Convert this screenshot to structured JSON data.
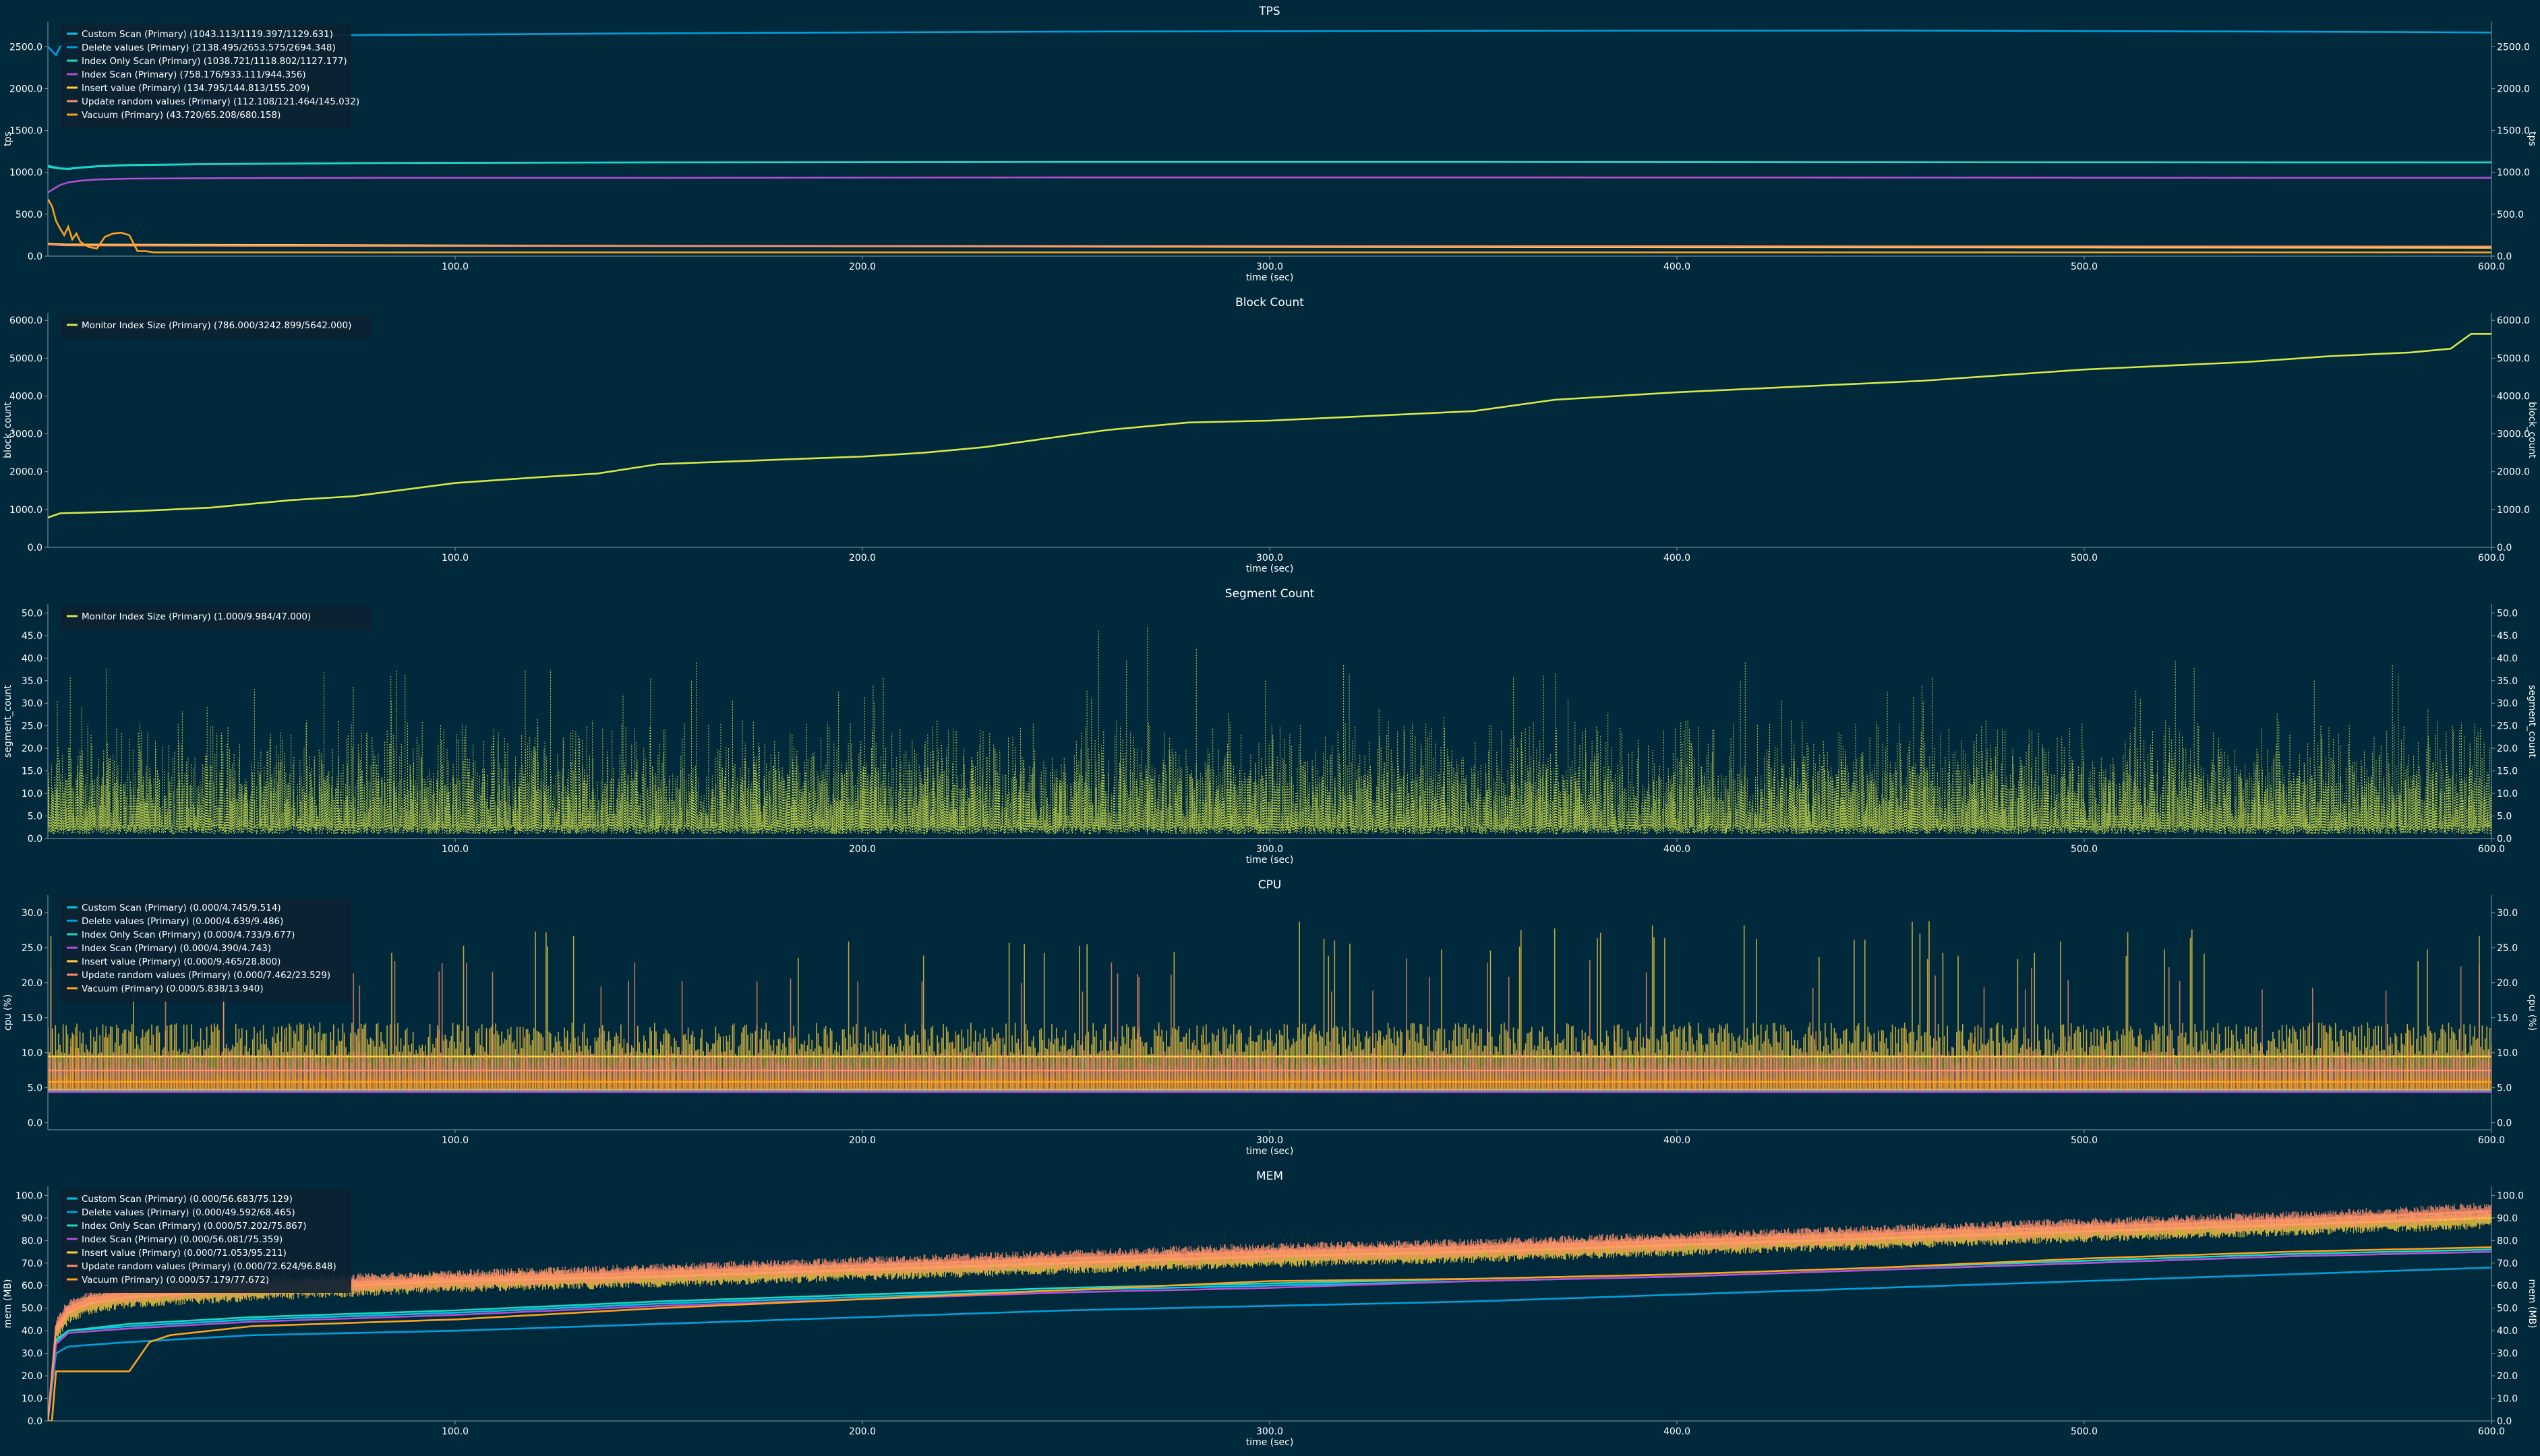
{
  "colors": {
    "background": "#00293c",
    "legend_bg": "#0b2232",
    "text": "#ffffff",
    "axis": "#8a9aa4"
  },
  "chart_data": [
    {
      "type": "line",
      "title": "TPS",
      "xlabel": "time (sec)",
      "ylabel": "tps",
      "xlim": [
        0,
        600
      ],
      "ylim": [
        0,
        2800
      ],
      "xticks": [
        100,
        200,
        300,
        400,
        500,
        600
      ],
      "yticks": [
        0,
        500,
        1000,
        1500,
        2000,
        2500
      ],
      "legend_position": "top-left",
      "series": [
        {
          "name": "Custom Scan (Primary) (1043.113/1119.397/1129.631)",
          "color": "#00c5e8",
          "x": [
            0,
            1,
            2,
            3,
            5,
            8,
            12,
            20,
            40,
            80,
            150,
            250,
            350,
            450,
            550,
            600
          ],
          "y": [
            1080,
            1070,
            1060,
            1050,
            1045,
            1060,
            1075,
            1090,
            1100,
            1112,
            1120,
            1125,
            1125,
            1122,
            1120,
            1120
          ]
        },
        {
          "name": "Delete values (Primary) (2138.495/2653.575/2694.348)",
          "color": "#00a0dc",
          "x": [
            0,
            1,
            2,
            3,
            5,
            8,
            12,
            20,
            40,
            80,
            150,
            250,
            350,
            450,
            550,
            600
          ],
          "y": [
            2500,
            2450,
            2400,
            2500,
            2540,
            2560,
            2580,
            2600,
            2620,
            2640,
            2660,
            2680,
            2690,
            2694,
            2680,
            2670
          ]
        },
        {
          "name": "Index Only Scan (Primary) (1038.721/1118.802/1127.177)",
          "color": "#1fd6c5",
          "x": [
            0,
            1,
            2,
            3,
            5,
            8,
            12,
            20,
            40,
            80,
            150,
            250,
            350,
            450,
            550,
            600
          ],
          "y": [
            1070,
            1060,
            1050,
            1045,
            1040,
            1055,
            1070,
            1085,
            1098,
            1110,
            1118,
            1124,
            1124,
            1121,
            1119,
            1118
          ]
        },
        {
          "name": "Index Scan (Primary) (758.176/933.111/944.356)",
          "color": "#b44fd0",
          "x": [
            0,
            1,
            2,
            3,
            5,
            8,
            12,
            20,
            40,
            80,
            150,
            250,
            350,
            450,
            550,
            600
          ],
          "y": [
            760,
            790,
            820,
            850,
            880,
            900,
            915,
            925,
            930,
            935,
            935,
            940,
            940,
            938,
            935,
            935
          ]
        },
        {
          "name": "Insert value (Primary) (134.795/144.813/155.209)",
          "color": "#ffd23c",
          "x": [
            0,
            2,
            4,
            10,
            30,
            60,
            100,
            150,
            200,
            250,
            300,
            350,
            400,
            450,
            500,
            550,
            600
          ],
          "y": [
            150,
            145,
            140,
            138,
            136,
            134,
            128,
            122,
            118,
            114,
            110,
            108,
            106,
            105,
            104,
            102,
            100
          ]
        },
        {
          "name": "Update random values (Primary) (112.108/121.464/145.032)",
          "color": "#ff8f6b",
          "x": [
            0,
            2,
            4,
            10,
            30,
            60,
            100,
            150,
            200,
            250,
            300,
            350,
            400,
            450,
            500,
            550,
            600
          ],
          "y": [
            140,
            135,
            130,
            128,
            126,
            124,
            122,
            121,
            120,
            120,
            119,
            118,
            118,
            117,
            116,
            115,
            114
          ]
        },
        {
          "name": "Vacuum (Primary) (43.720/65.208/680.158)",
          "color": "#ffa21f",
          "x": [
            0,
            1,
            2,
            3,
            4,
            5,
            6,
            7,
            8,
            10,
            12,
            14,
            16,
            18,
            20,
            22,
            24,
            26,
            30,
            40,
            60,
            80,
            100,
            150,
            200,
            250,
            300,
            350,
            400,
            450,
            500,
            550,
            600
          ],
          "y": [
            680,
            600,
            420,
            330,
            250,
            350,
            200,
            270,
            170,
            110,
            90,
            230,
            270,
            280,
            250,
            60,
            60,
            45,
            45,
            45,
            45,
            44,
            45,
            45,
            45,
            45,
            45,
            45,
            45,
            45,
            45,
            45,
            45
          ]
        }
      ]
    },
    {
      "type": "line",
      "title": "Block Count",
      "xlabel": "time (sec)",
      "ylabel": "block_count",
      "xlim": [
        0,
        600
      ],
      "ylim": [
        0,
        6200
      ],
      "xticks": [
        100,
        200,
        300,
        400,
        500,
        600
      ],
      "yticks": [
        0,
        1000,
        2000,
        3000,
        4000,
        5000,
        6000
      ],
      "legend_position": "top-left",
      "series": [
        {
          "name": "Monitor Index Size (Primary) (786.000/3242.899/5642.000)",
          "color": "#d8e84a",
          "x": [
            0,
            3,
            20,
            40,
            60,
            75,
            100,
            120,
            135,
            150,
            175,
            200,
            215,
            230,
            240,
            260,
            280,
            300,
            320,
            350,
            370,
            385,
            400,
            420,
            440,
            460,
            480,
            500,
            520,
            540,
            560,
            580,
            590,
            595,
            600
          ],
          "y": [
            786,
            900,
            950,
            1050,
            1250,
            1350,
            1700,
            1850,
            1950,
            2200,
            2300,
            2400,
            2500,
            2650,
            2800,
            3100,
            3300,
            3350,
            3450,
            3600,
            3900,
            4000,
            4100,
            4200,
            4300,
            4400,
            4550,
            4700,
            4800,
            4900,
            5050,
            5150,
            5250,
            5642,
            5642
          ]
        }
      ]
    },
    {
      "type": "line",
      "title": "Segment Count",
      "xlabel": "time (sec)",
      "ylabel": "segment_count",
      "xlim": [
        0,
        600
      ],
      "ylim": [
        0,
        52
      ],
      "xticks": [
        100,
        200,
        300,
        400,
        500,
        600
      ],
      "yticks": [
        0,
        5,
        10,
        15,
        20,
        25,
        30,
        35,
        40,
        45,
        50
      ],
      "legend_position": "top-left",
      "series": [
        {
          "name": "Monitor Index Size (Primary) (1.000/9.984/47.000)",
          "color": "#d8e84a",
          "noise": {
            "min": 1,
            "mean": 9.984,
            "typical_max": 22,
            "max": 47
          }
        }
      ]
    },
    {
      "type": "line",
      "title": "CPU",
      "xlabel": "time (sec)",
      "ylabel": "cpu (%)",
      "xlim": [
        0,
        600
      ],
      "ylim": [
        -1,
        32.5
      ],
      "xticks": [
        100,
        200,
        300,
        400,
        500,
        600
      ],
      "yticks": [
        0,
        5,
        10,
        15,
        20,
        25,
        30
      ],
      "legend_position": "top-left",
      "series": [
        {
          "name": "Custom Scan (Primary) (0.000/4.745/9.514)",
          "color": "#00c5e8",
          "band": {
            "min": 4.5,
            "mean": 4.745,
            "max": 9.514
          }
        },
        {
          "name": "Delete values (Primary) (0.000/4.639/9.486)",
          "color": "#00a0dc",
          "band": {
            "min": 4.4,
            "mean": 4.639,
            "max": 9.486
          }
        },
        {
          "name": "Index Only Scan (Primary) (0.000/4.733/9.677)",
          "color": "#1fd6c5",
          "band": {
            "min": 4.5,
            "mean": 4.733,
            "max": 9.677
          }
        },
        {
          "name": "Index Scan (Primary) (0.000/4.390/4.743)",
          "color": "#b44fd0",
          "band": {
            "min": 4.3,
            "mean": 4.39,
            "max": 4.743
          }
        },
        {
          "name": "Insert value (Primary) (0.000/9.465/28.800)",
          "color": "#ffd23c",
          "band": {
            "min": 4.6,
            "mean": 9.465,
            "max": 28.8
          }
        },
        {
          "name": "Update random values (Primary) (0.000/7.462/23.529)",
          "color": "#ff8f6b",
          "band": {
            "min": 4.6,
            "mean": 7.462,
            "max": 23.529
          }
        },
        {
          "name": "Vacuum (Primary) (0.000/5.838/13.940)",
          "color": "#ffa21f",
          "band": {
            "min": 4.6,
            "mean": 5.838,
            "max": 13.94
          }
        }
      ]
    },
    {
      "type": "line",
      "title": "MEM",
      "xlabel": "time (sec)",
      "ylabel": "mem (MB)",
      "xlim": [
        0,
        600
      ],
      "ylim": [
        0,
        104
      ],
      "xticks": [
        100,
        200,
        300,
        400,
        500,
        600
      ],
      "yticks": [
        0,
        10,
        20,
        30,
        40,
        50,
        60,
        70,
        80,
        90,
        100
      ],
      "legend_position": "top-left",
      "series": [
        {
          "name": "Custom Scan (Primary) (0.000/56.683/75.129)",
          "color": "#00c5e8",
          "x": [
            0,
            2,
            5,
            20,
            50,
            100,
            150,
            200,
            250,
            300,
            350,
            400,
            450,
            500,
            550,
            600
          ],
          "y": [
            0,
            35,
            40,
            42,
            45,
            48,
            52,
            55,
            58,
            60,
            62,
            64,
            67,
            70,
            73,
            75
          ]
        },
        {
          "name": "Delete values (Primary) (0.000/49.592/68.465)",
          "color": "#00a0dc",
          "x": [
            0,
            2,
            5,
            20,
            50,
            100,
            150,
            200,
            250,
            300,
            350,
            400,
            450,
            500,
            550,
            600
          ],
          "y": [
            0,
            30,
            33,
            35,
            38,
            40,
            43,
            46,
            49,
            51,
            53,
            56,
            59,
            62,
            65,
            68
          ]
        },
        {
          "name": "Index Only Scan (Primary) (0.000/57.202/75.867)",
          "color": "#1fd6c5",
          "x": [
            0,
            2,
            5,
            20,
            50,
            100,
            150,
            200,
            250,
            300,
            350,
            400,
            450,
            500,
            550,
            600
          ],
          "y": [
            0,
            36,
            40,
            43,
            46,
            49,
            53,
            56,
            59,
            61,
            63,
            65,
            68,
            71,
            74,
            76
          ]
        },
        {
          "name": "Index Scan (Primary) (0.000/56.081/75.359)",
          "color": "#b44fd0",
          "x": [
            0,
            2,
            5,
            20,
            50,
            100,
            150,
            200,
            250,
            300,
            350,
            400,
            450,
            500,
            550,
            600
          ],
          "y": [
            0,
            34,
            39,
            41,
            44,
            47,
            51,
            54,
            57,
            59,
            62,
            64,
            67,
            70,
            73,
            75
          ]
        },
        {
          "name": "Insert value (Primary) (0.000/71.053/95.211)",
          "color": "#ffd23c",
          "x": [
            0,
            2,
            5,
            10,
            20,
            50,
            100,
            150,
            200,
            250,
            300,
            350,
            400,
            450,
            500,
            550,
            600
          ],
          "y": [
            0,
            40,
            48,
            52,
            55,
            58,
            62,
            64,
            67,
            70,
            73,
            75,
            78,
            81,
            84,
            87,
            90
          ]
        },
        {
          "name": "Update random values (Primary) (0.000/72.624/96.848)",
          "color": "#ff8f6b",
          "x": [
            0,
            2,
            5,
            10,
            20,
            50,
            100,
            150,
            200,
            250,
            300,
            350,
            400,
            450,
            500,
            550,
            600
          ],
          "y": [
            0,
            42,
            50,
            54,
            57,
            60,
            63,
            66,
            69,
            72,
            75,
            77,
            80,
            83,
            86,
            89,
            93
          ]
        },
        {
          "name": "Vacuum (Primary) (0.000/57.179/77.672)",
          "color": "#ffa21f",
          "x": [
            0,
            1,
            2,
            3,
            5,
            10,
            20,
            25,
            30,
            50,
            100,
            150,
            200,
            250,
            300,
            350,
            400,
            450,
            500,
            550,
            600
          ],
          "y": [
            0,
            0,
            22,
            22,
            22,
            22,
            22,
            35,
            38,
            42,
            45,
            50,
            54,
            58,
            62,
            63,
            65,
            68,
            72,
            75,
            77
          ]
        }
      ]
    }
  ]
}
